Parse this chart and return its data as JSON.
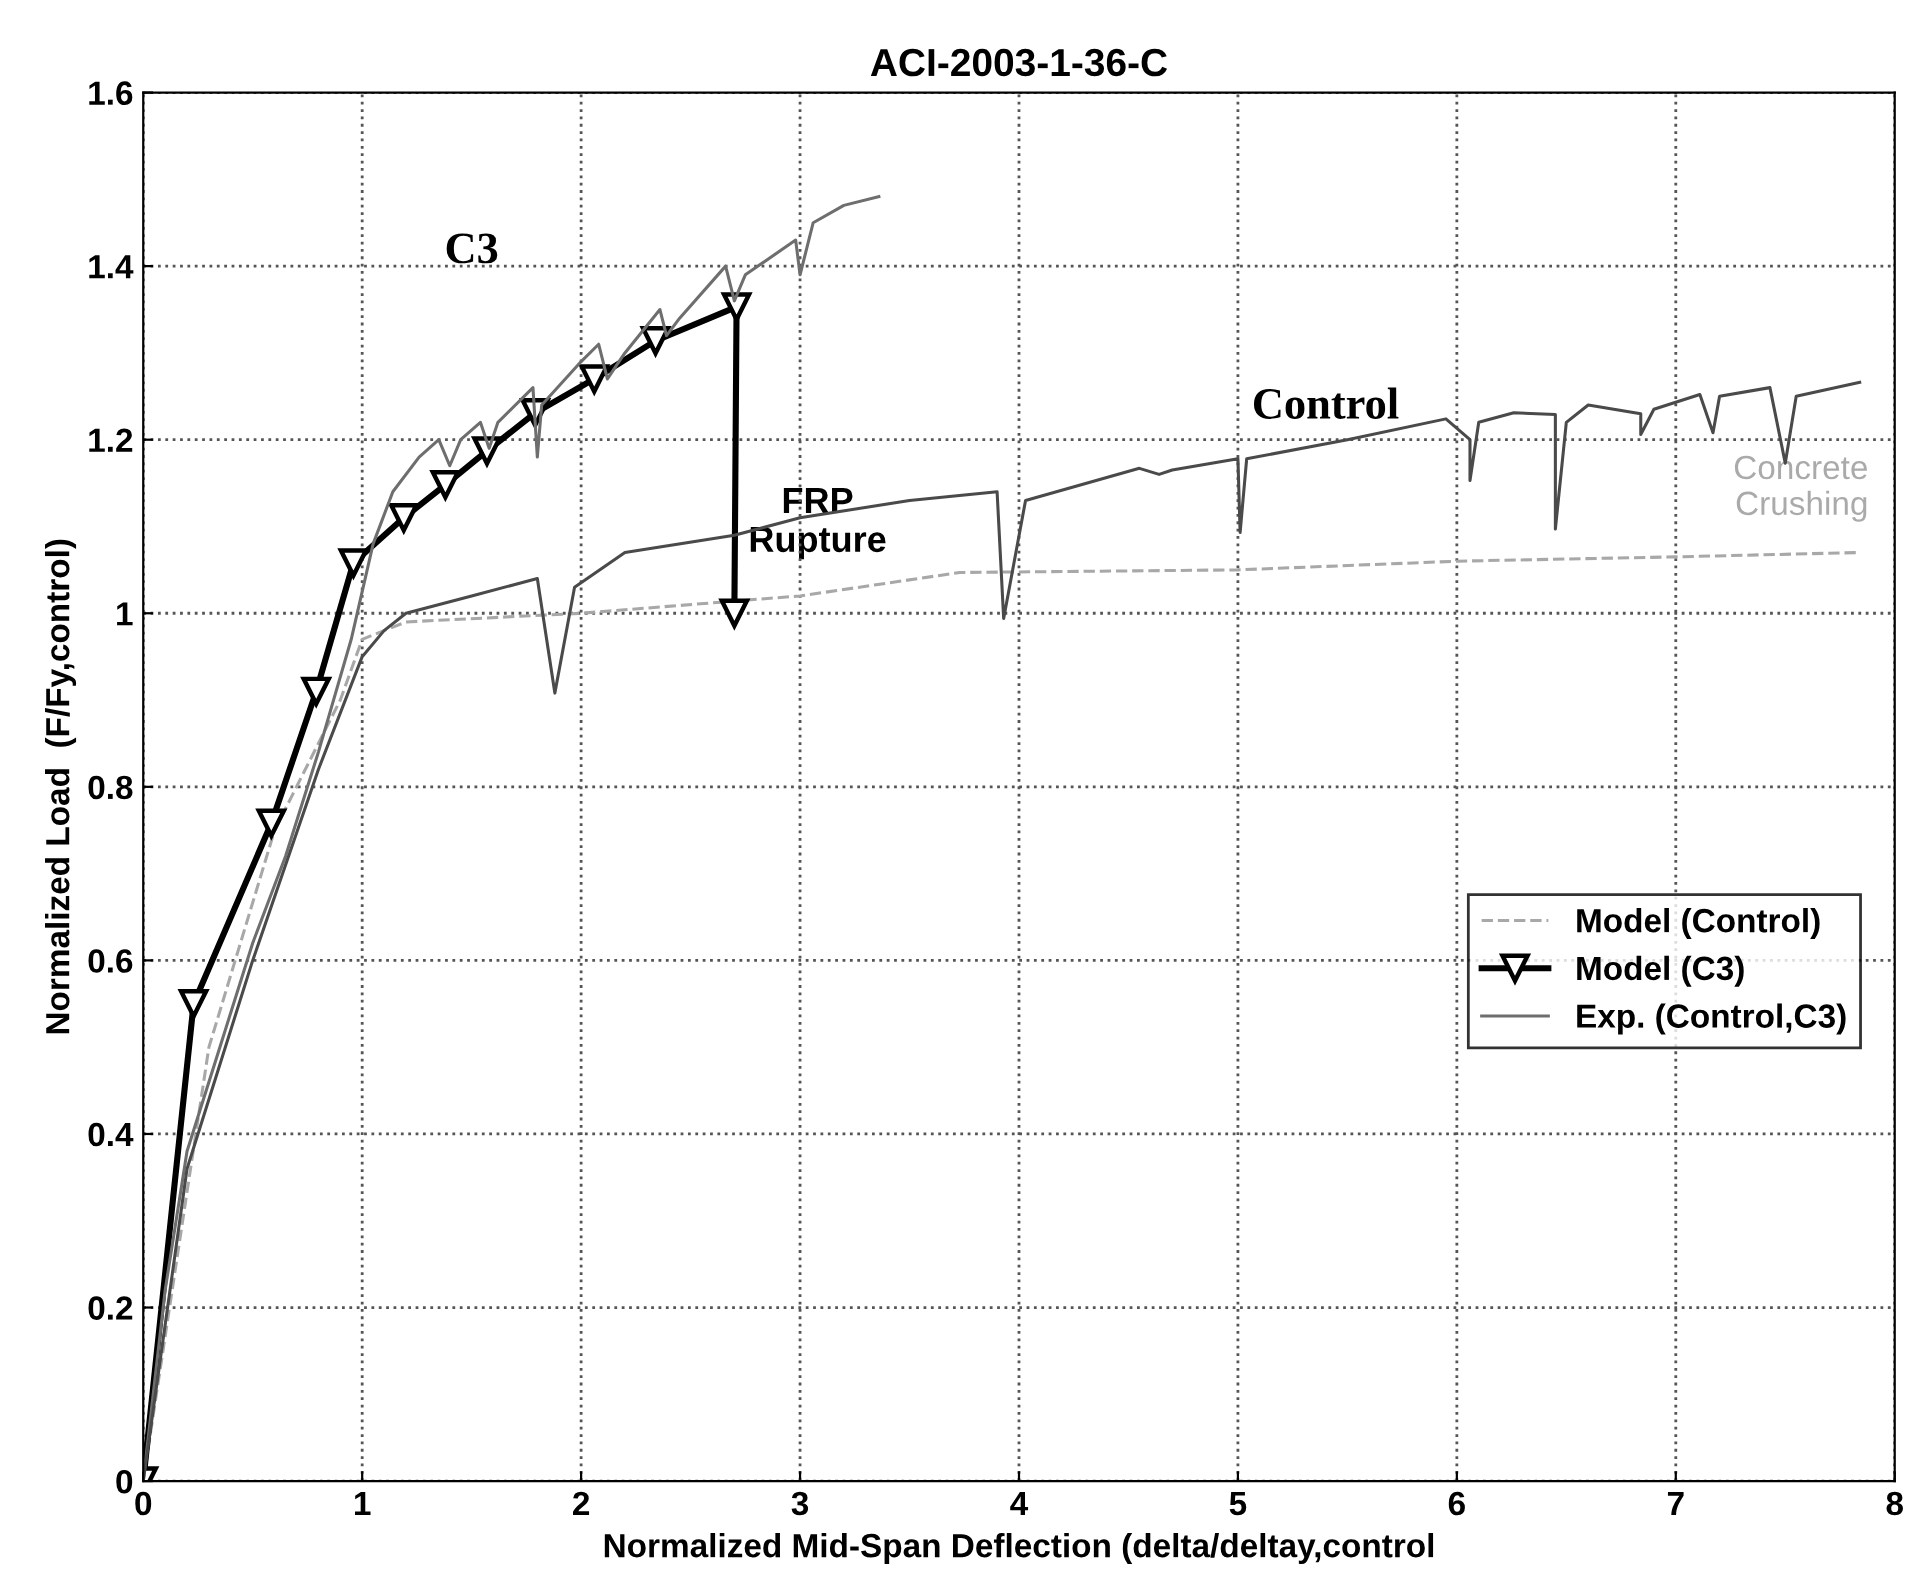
{
  "chart_data": {
    "type": "line",
    "title": "ACI-2003-1-36-C",
    "xlabel": "Normalized Mid-Span Deflection (delta/deltay,control",
    "ylabel": "Normalized Load  (F/Fy,control)",
    "xlim": [
      0,
      8
    ],
    "ylim": [
      0,
      1.6
    ],
    "xticks": [
      0,
      1,
      2,
      3,
      4,
      5,
      6,
      7,
      8
    ],
    "yticks": [
      0,
      0.2,
      0.4,
      0.6,
      0.8,
      1,
      1.2,
      1.4,
      1.6
    ],
    "grid": true,
    "legend": "bottom right",
    "series": [
      {
        "name": "Model (Control)",
        "color": "#a8a8a8",
        "line_style": "dashed",
        "marker": "none",
        "x": [
          0,
          0.3,
          0.6,
          0.9,
          1.0,
          1.2,
          2.0,
          3.0,
          3.73,
          5.0,
          6.0,
          7.0,
          7.84
        ],
        "values": [
          0,
          0.5,
          0.75,
          0.9,
          0.97,
          0.99,
          1.0,
          1.02,
          1.047,
          1.05,
          1.06,
          1.065,
          1.07
        ]
      },
      {
        "name": "Model (C3)",
        "color": "#000000",
        "line_style": "solid",
        "marker": "triangle",
        "x": [
          0,
          0.23,
          0.585,
          0.79,
          0.96,
          1.19,
          1.38,
          1.57,
          1.79,
          2.06,
          2.34,
          2.71,
          2.7
        ],
        "values": [
          0,
          0.55,
          0.758,
          0.91,
          1.058,
          1.11,
          1.148,
          1.187,
          1.231,
          1.27,
          1.314,
          1.353,
          1.0
        ]
      },
      {
        "name": "Exp. (Control,C3)",
        "color": "#6e6e6e",
        "line_style": "solid",
        "marker": "none",
        "x": [
          0,
          0.1,
          0.2,
          0.35,
          0.5,
          0.65,
          0.8,
          0.95,
          1.05,
          1.14,
          1.26,
          1.35,
          1.4,
          1.45,
          1.54,
          1.58,
          1.62,
          1.78,
          1.8,
          1.82,
          2.0,
          2.08,
          2.12,
          2.2,
          2.36,
          2.39,
          2.45,
          2.66,
          2.7,
          2.75,
          2.98,
          3.0,
          3.06,
          3.2,
          3.36
        ],
        "values": [
          0,
          0.22,
          0.38,
          0.5,
          0.62,
          0.72,
          0.84,
          0.97,
          1.08,
          1.14,
          1.18,
          1.2,
          1.17,
          1.2,
          1.22,
          1.19,
          1.22,
          1.26,
          1.18,
          1.24,
          1.29,
          1.31,
          1.27,
          1.3,
          1.35,
          1.32,
          1.34,
          1.4,
          1.36,
          1.39,
          1.43,
          1.39,
          1.45,
          1.47,
          1.48
        ]
      },
      {
        "color": "#4a4a4a",
        "line_style": "solid",
        "marker": "none",
        "x": [
          0,
          0.2,
          0.5,
          0.8,
          1.0,
          1.1,
          1.2,
          1.5,
          1.8,
          1.88,
          1.97,
          2.2,
          2.7,
          3.0,
          3.5,
          3.9,
          3.93,
          4.03,
          4.55,
          4.64,
          4.7,
          5.0,
          5.01,
          5.04,
          5.5,
          5.95,
          6.06,
          6.06,
          6.1,
          6.26,
          6.45,
          6.45,
          6.5,
          6.6,
          6.84,
          6.84,
          6.9,
          7.11,
          7.17,
          7.2,
          7.43,
          7.5,
          7.55,
          7.84
        ],
        "values": [
          0,
          0.36,
          0.6,
          0.82,
          0.95,
          0.98,
          1.0,
          1.02,
          1.04,
          0.908,
          1.03,
          1.07,
          1.09,
          1.11,
          1.13,
          1.14,
          0.994,
          1.13,
          1.167,
          1.16,
          1.165,
          1.178,
          1.093,
          1.178,
          1.2,
          1.224,
          1.2,
          1.153,
          1.22,
          1.231,
          1.229,
          1.097,
          1.22,
          1.24,
          1.23,
          1.206,
          1.235,
          1.252,
          1.208,
          1.25,
          1.26,
          1.173,
          1.25,
          1.266
        ]
      }
    ],
    "annotations": [
      "C3",
      "Control",
      "FRP\nRupture",
      "Concrete\nCrushing"
    ]
  }
}
